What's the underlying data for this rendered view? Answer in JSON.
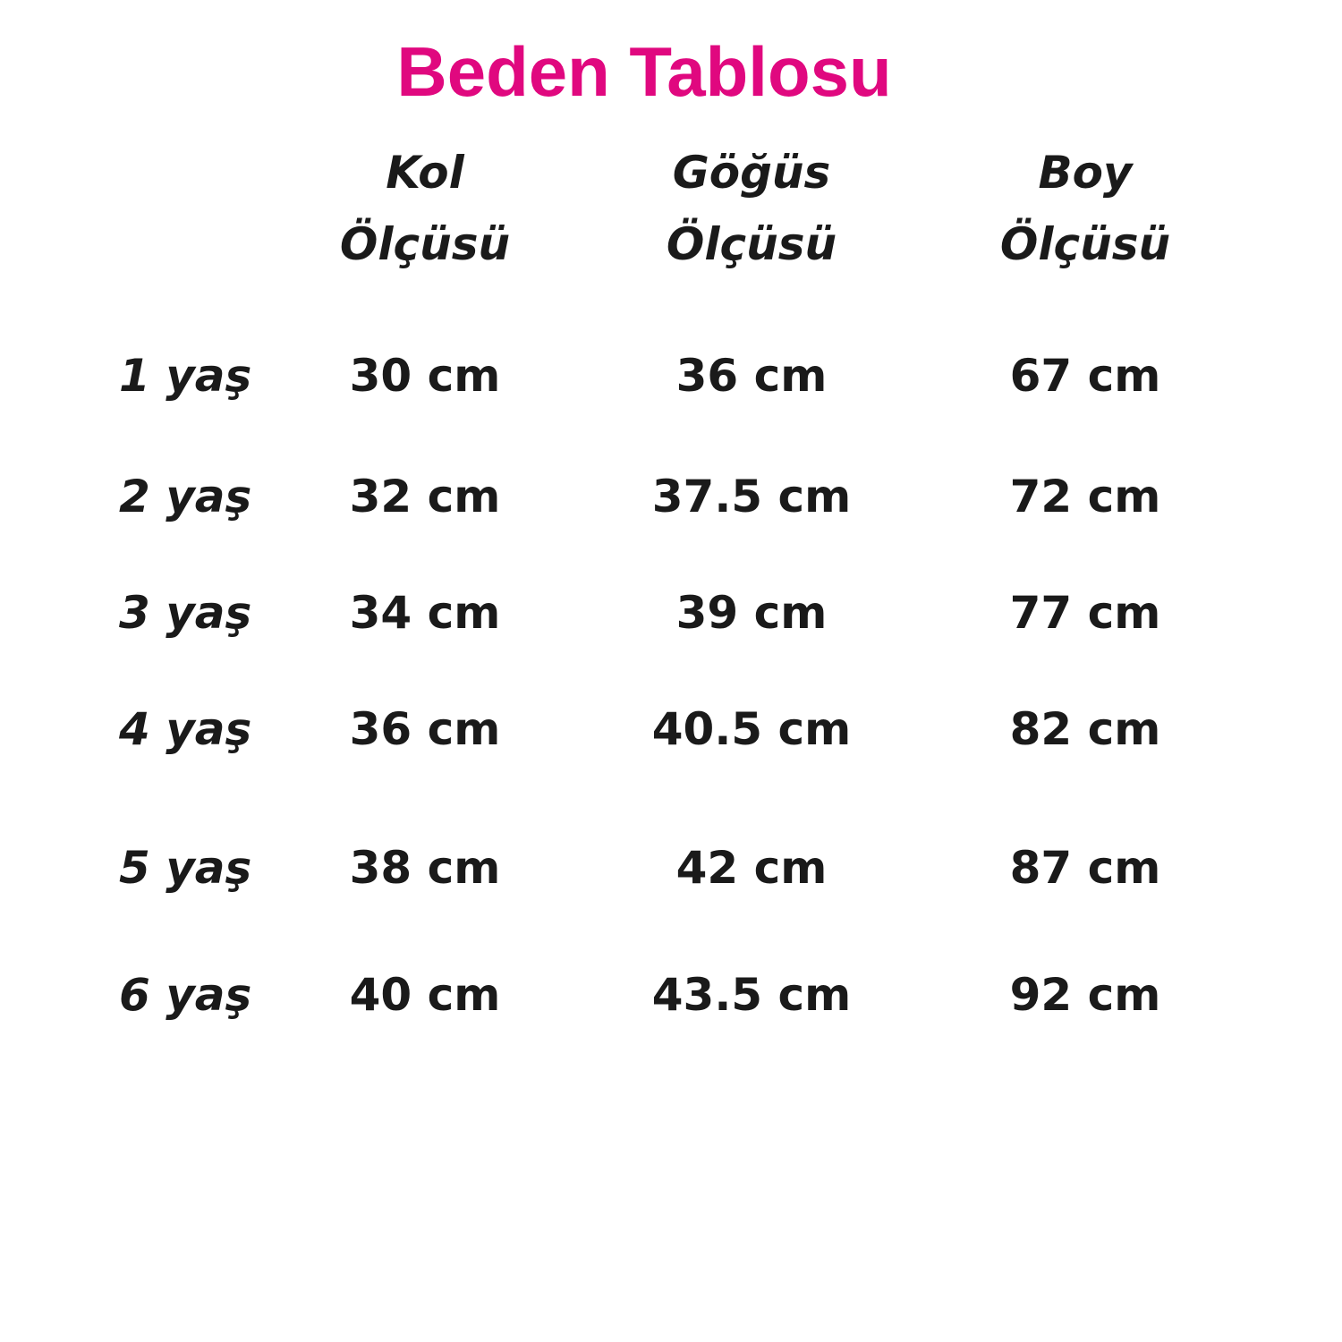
{
  "title": "Beden Tablosu",
  "colors": {
    "title": "#E0087F",
    "text": "#1a1a1a"
  },
  "columns": [
    {
      "line1": "Kol",
      "line2": "Ölçüsü"
    },
    {
      "line1": "Göğüs",
      "line2": "Ölçüsü"
    },
    {
      "line1": "Boy",
      "line2": "Ölçüsü"
    }
  ],
  "rows": [
    {
      "label": "1 yaş",
      "values": [
        "30 cm",
        "36 cm",
        "67 cm"
      ]
    },
    {
      "label": "2 yaş",
      "values": [
        "32 cm",
        "37.5 cm",
        "72 cm"
      ]
    },
    {
      "label": "3 yaş",
      "values": [
        "34 cm",
        "39 cm",
        "77 cm"
      ]
    },
    {
      "label": "4 yaş",
      "values": [
        "36 cm",
        "40.5 cm",
        "82 cm"
      ]
    },
    {
      "label": "5 yaş",
      "values": [
        "38 cm",
        "42 cm",
        "87 cm"
      ]
    },
    {
      "label": "6 yaş",
      "values": [
        "40 cm",
        "43.5 cm",
        "92 cm"
      ]
    }
  ]
}
